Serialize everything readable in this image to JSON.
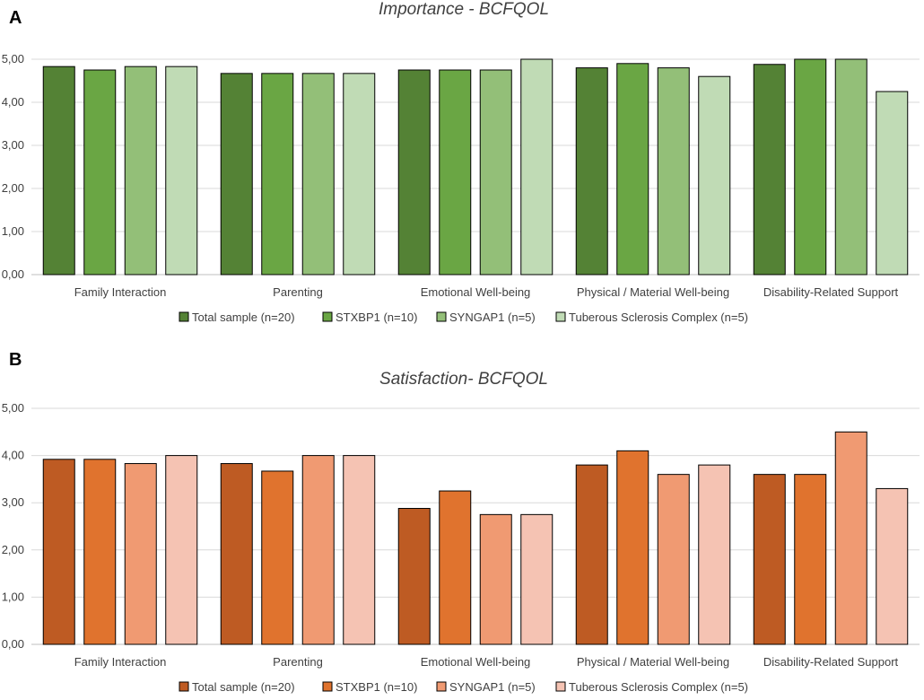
{
  "chart_data": [
    {
      "panel": "A",
      "type": "bar",
      "title": "Importance - BCFQOL",
      "categories": [
        "Family Interaction",
        "Parenting",
        "Emotional Well-being",
        "Physical / Material Well-being",
        "Disability-Related Support"
      ],
      "ylim": [
        0,
        5
      ],
      "yticks": [
        "0,00",
        "1,00",
        "2,00",
        "3,00",
        "4,00",
        "5,00"
      ],
      "grid": true,
      "legend_position": "bottom",
      "series": [
        {
          "name": "Total sample (n=20)",
          "color": "#548235",
          "values": [
            4.83,
            4.67,
            4.75,
            4.8,
            4.88
          ]
        },
        {
          "name": "STXBP1 (n=10)",
          "color": "#6aa644",
          "values": [
            4.75,
            4.67,
            4.75,
            4.9,
            5.0
          ]
        },
        {
          "name": "SYNGAP1 (n=5)",
          "color": "#93bf78",
          "values": [
            4.83,
            4.67,
            4.75,
            4.8,
            5.0
          ]
        },
        {
          "name": "Tuberous Sclerosis Complex  (n=5)",
          "color": "#c0dbb5",
          "values": [
            4.83,
            4.67,
            5.0,
            4.6,
            4.25
          ]
        }
      ]
    },
    {
      "panel": "B",
      "type": "bar",
      "title": "Satisfaction- BCFQOL",
      "categories": [
        "Family Interaction",
        "Parenting",
        "Emotional Well-being",
        "Physical / Material Well-being",
        "Disability-Related Support"
      ],
      "ylim": [
        0,
        5
      ],
      "yticks": [
        "0,00",
        "1,00",
        "2,00",
        "3,00",
        "4,00",
        "5,00"
      ],
      "grid": true,
      "legend_position": "bottom",
      "series": [
        {
          "name": "Total sample (n=20)",
          "color": "#be5b23",
          "values": [
            3.92,
            3.83,
            2.88,
            3.8,
            3.6
          ]
        },
        {
          "name": "STXBP1 (n=10)",
          "color": "#e0732e",
          "values": [
            3.92,
            3.67,
            3.25,
            4.1,
            3.6
          ]
        },
        {
          "name": "SYNGAP1 (n=5)",
          "color": "#f09a72",
          "values": [
            3.83,
            4.0,
            2.75,
            3.6,
            4.5
          ]
        },
        {
          "name": "Tuberous Sclerosis Complex  (n=5)",
          "color": "#f5c3b3",
          "values": [
            4.0,
            4.0,
            2.75,
            3.8,
            3.3
          ]
        }
      ]
    }
  ]
}
